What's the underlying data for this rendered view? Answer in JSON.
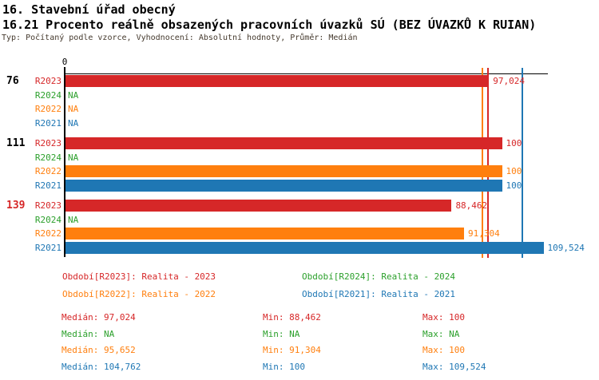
{
  "header": {
    "section_title": "16. Stavební úřad obecný",
    "indicator_title": "16.21 Procento reálně obsazených pracovních úvazků SÚ (BEZ ÚVAZKŮ K RUIAN)",
    "meta_line": "Typ: Počítaný podle vzorce, Vyhodnocení: Absolutní hodnoty, Průměr: Medián"
  },
  "colors": {
    "R2023": "#d62728",
    "R2024": "#2ca02c",
    "R2022": "#ff7f0e",
    "R2021": "#1f77b4",
    "axis": "#000000",
    "group_label_default": "#000000",
    "group_label_highlight": "#d62728"
  },
  "chart_data": {
    "type": "bar",
    "orientation": "horizontal",
    "x_axis": {
      "side": "top",
      "origin_label": "0",
      "xlim": [
        0,
        110.7
      ],
      "grid": false
    },
    "na_text": "NA",
    "series_order": [
      "R2023",
      "R2024",
      "R2022",
      "R2021"
    ],
    "groups": [
      {
        "label": "76",
        "highlighted": false,
        "rows": [
          {
            "series": "R2023",
            "value": 97.024,
            "display": "97,024"
          },
          {
            "series": "R2024",
            "value": null,
            "display": "NA"
          },
          {
            "series": "R2022",
            "value": null,
            "display": "NA"
          },
          {
            "series": "R2021",
            "value": null,
            "display": "NA"
          }
        ]
      },
      {
        "label": "111",
        "highlighted": false,
        "rows": [
          {
            "series": "R2023",
            "value": 100,
            "display": "100"
          },
          {
            "series": "R2024",
            "value": null,
            "display": "NA"
          },
          {
            "series": "R2022",
            "value": 100,
            "display": "100"
          },
          {
            "series": "R2021",
            "value": 100,
            "display": "100"
          }
        ]
      },
      {
        "label": "139",
        "highlighted": true,
        "rows": [
          {
            "series": "R2023",
            "value": 88.462,
            "display": "88,462"
          },
          {
            "series": "R2024",
            "value": null,
            "display": "NA"
          },
          {
            "series": "R2022",
            "value": 91.304,
            "display": "91,304"
          },
          {
            "series": "R2021",
            "value": 109.524,
            "display": "109,524"
          }
        ]
      }
    ],
    "median_lines": [
      {
        "series": "R2023",
        "value": 97.024
      },
      {
        "series": "R2022",
        "value": 95.652
      },
      {
        "series": "R2021",
        "value": 104.762
      }
    ]
  },
  "legend": {
    "rows": [
      [
        {
          "series": "R2023",
          "text": "Období[R2023]: Realita - 2023"
        },
        {
          "series": "R2024",
          "text": "Období[R2024]: Realita - 2024"
        }
      ],
      [
        {
          "series": "R2022",
          "text": "Období[R2022]: Realita - 2022"
        },
        {
          "series": "R2021",
          "text": "Období[R2021]: Realita - 2021"
        }
      ]
    ]
  },
  "stats": {
    "labels": {
      "median": "Medián",
      "min": "Min",
      "max": "Max"
    },
    "rows": [
      {
        "series": "R2023",
        "median": "97,024",
        "min": "88,462",
        "max": "100"
      },
      {
        "series": "R2024",
        "median": "NA",
        "min": "NA",
        "max": "NA"
      },
      {
        "series": "R2022",
        "median": "95,652",
        "min": "91,304",
        "max": "100"
      },
      {
        "series": "R2021",
        "median": "104,762",
        "min": "100",
        "max": "109,524"
      }
    ]
  }
}
